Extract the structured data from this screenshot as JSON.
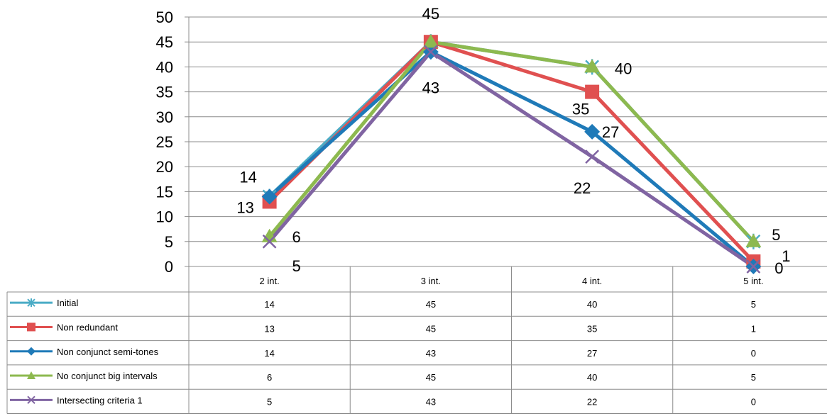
{
  "chart_data": {
    "type": "line",
    "categories": [
      "2 int.",
      "3 int.",
      "4 int.",
      "5 int."
    ],
    "ylim": [
      0,
      50
    ],
    "yticks": [
      0,
      5,
      10,
      15,
      20,
      25,
      30,
      35,
      40,
      45,
      50
    ],
    "grid": true,
    "legend": "data-table-below",
    "series": [
      {
        "name": "Initial",
        "values": [
          14,
          45,
          40,
          5
        ],
        "color": "#4BACC6",
        "marker": "star"
      },
      {
        "name": "Non redundant",
        "values": [
          13,
          45,
          35,
          1
        ],
        "color": "#E05050",
        "marker": "square"
      },
      {
        "name": "Non conjunct semi-tones",
        "values": [
          14,
          43,
          27,
          0
        ],
        "color": "#1F7AB8",
        "marker": "diamond"
      },
      {
        "name": "No conjunct big intervals",
        "values": [
          6,
          45,
          40,
          5
        ],
        "color": "#8DB94F",
        "marker": "triangle"
      },
      {
        "name": "Intersecting criteria 1",
        "values": [
          5,
          43,
          22,
          0
        ],
        "color": "#8064A2",
        "marker": "x"
      }
    ],
    "data_labels": [
      "14",
      "13",
      "6",
      "5",
      "45",
      "43",
      "40",
      "35",
      "27",
      "22",
      "5",
      "1",
      "0"
    ]
  }
}
